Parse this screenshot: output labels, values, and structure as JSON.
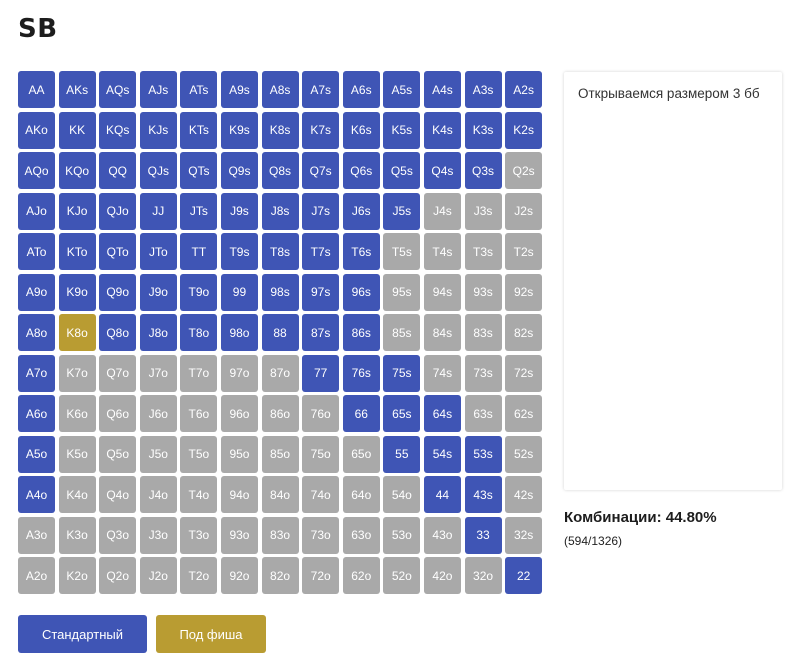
{
  "page": {
    "title": "SB"
  },
  "range": {
    "ranks": [
      "A",
      "K",
      "Q",
      "J",
      "T",
      "9",
      "8",
      "7",
      "6",
      "5",
      "4",
      "3",
      "2"
    ],
    "cells": [
      [
        "AA|r",
        "AKs|r",
        "AQs|r",
        "AJs|r",
        "ATs|r",
        "A9s|r",
        "A8s|r",
        "A7s|r",
        "A6s|r",
        "A5s|r",
        "A4s|r",
        "A3s|r",
        "A2s|r"
      ],
      [
        "AKo|r",
        "KK|r",
        "KQs|r",
        "KJs|r",
        "KTs|r",
        "K9s|r",
        "K8s|r",
        "K7s|r",
        "K6s|r",
        "K5s|r",
        "K4s|r",
        "K3s|r",
        "K2s|r"
      ],
      [
        "AQo|r",
        "KQo|r",
        "QQ|r",
        "QJs|r",
        "QTs|r",
        "Q9s|r",
        "Q8s|r",
        "Q7s|r",
        "Q6s|r",
        "Q5s|r",
        "Q4s|r",
        "Q3s|r",
        "Q2s|f"
      ],
      [
        "AJo|r",
        "KJo|r",
        "QJo|r",
        "JJ|r",
        "JTs|r",
        "J9s|r",
        "J8s|r",
        "J7s|r",
        "J6s|r",
        "J5s|r",
        "J4s|f",
        "J3s|f",
        "J2s|f"
      ],
      [
        "ATo|r",
        "KTo|r",
        "QTo|r",
        "JTo|r",
        "TT|r",
        "T9s|r",
        "T8s|r",
        "T7s|r",
        "T6s|r",
        "T5s|f",
        "T4s|f",
        "T3s|f",
        "T2s|f"
      ],
      [
        "A9o|r",
        "K9o|r",
        "Q9o|r",
        "J9o|r",
        "T9o|r",
        "99|r",
        "98s|r",
        "97s|r",
        "96s|r",
        "95s|f",
        "94s|f",
        "93s|f",
        "92s|f"
      ],
      [
        "A8o|r",
        "K8o|l",
        "Q8o|r",
        "J8o|r",
        "T8o|r",
        "98o|r",
        "88|r",
        "87s|r",
        "86s|r",
        "85s|f",
        "84s|f",
        "83s|f",
        "82s|f"
      ],
      [
        "A7o|r",
        "K7o|f",
        "Q7o|f",
        "J7o|f",
        "T7o|f",
        "97o|f",
        "87o|f",
        "77|r",
        "76s|r",
        "75s|r",
        "74s|f",
        "73s|f",
        "72s|f"
      ],
      [
        "A6o|r",
        "K6o|f",
        "Q6o|f",
        "J6o|f",
        "T6o|f",
        "96o|f",
        "86o|f",
        "76o|f",
        "66|r",
        "65s|r",
        "64s|r",
        "63s|f",
        "62s|f"
      ],
      [
        "A5o|r",
        "K5o|f",
        "Q5o|f",
        "J5o|f",
        "T5o|f",
        "95o|f",
        "85o|f",
        "75o|f",
        "65o|f",
        "55|r",
        "54s|r",
        "53s|r",
        "52s|f"
      ],
      [
        "A4o|r",
        "K4o|f",
        "Q4o|f",
        "J4o|f",
        "T4o|f",
        "94o|f",
        "84o|f",
        "74o|f",
        "64o|f",
        "54o|f",
        "44|r",
        "43s|r",
        "42s|f"
      ],
      [
        "A3o|f",
        "K3o|f",
        "Q3o|f",
        "J3o|f",
        "T3o|f",
        "93o|f",
        "83o|f",
        "73o|f",
        "63o|f",
        "53o|f",
        "43o|f",
        "33|r",
        "32s|f"
      ],
      [
        "A2o|f",
        "K2o|f",
        "Q2o|f",
        "J2o|f",
        "T2o|f",
        "92o|f",
        "82o|f",
        "72o|f",
        "62o|f",
        "52o|f",
        "42o|f",
        "32o|f",
        "22|r"
      ]
    ],
    "legend_colors": {
      "raise": "#3f55b5",
      "fold": "#a9a9a9",
      "limp": "#b99c32"
    }
  },
  "notes": {
    "text": "Открываемся размером 3 бб"
  },
  "stats": {
    "label": "Комбинации: 44.80%",
    "detail": "(594/1326)"
  },
  "buttons": {
    "standard": "Стандартный",
    "fish": "Под фиша"
  }
}
